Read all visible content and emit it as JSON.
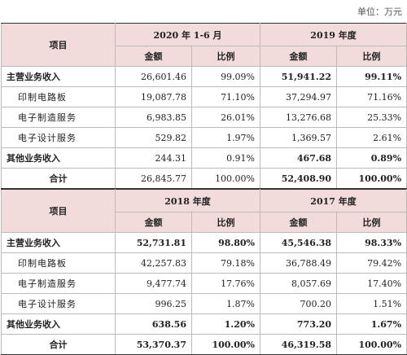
{
  "unit": "单位：万元",
  "blocks": [
    {
      "header": {
        "item": "项目",
        "periods": [
          "2020 年 1-6 月",
          "2019 年度"
        ],
        "columns": [
          "金额",
          "比例",
          "金额",
          "比例"
        ]
      },
      "rows": [
        [
          "主营业务收入",
          "26,601.46",
          "99.09%",
          "51,941.22",
          "99.11%"
        ],
        [
          "印制电路板",
          "19,087.78",
          "71.10%",
          "37,294.97",
          "71.16%"
        ],
        [
          "电子制造服务",
          "6,983.85",
          "26.01%",
          "13,276.68",
          "25.33%"
        ],
        [
          "电子设计服务",
          "529.82",
          "1.97%",
          "1,369.57",
          "2.61%"
        ],
        [
          "其他业务收入",
          "244.31",
          "0.91%",
          "467.68",
          "0.89%"
        ],
        [
          "合计",
          "26,845.77",
          "100.00%",
          "52,408.90",
          "100.00%"
        ]
      ]
    },
    {
      "header": {
        "item": "项目",
        "periods": [
          "2018 年度",
          "2017 年度"
        ],
        "columns": [
          "金额",
          "比例",
          "金额",
          "比例"
        ]
      },
      "rows": [
        [
          "主营业务收入",
          "52,731.81",
          "98.80%",
          "45,546.38",
          "98.33%"
        ],
        [
          "印制电路板",
          "42,257.83",
          "79.18%",
          "36,788.49",
          "79.42%"
        ],
        [
          "电子制造服务",
          "9,477.74",
          "17.76%",
          "8,057.69",
          "17.40%"
        ],
        [
          "电子设计服务",
          "996.25",
          "1.87%",
          "700.20",
          "1.51%"
        ],
        [
          "其他业务收入",
          "638.56",
          "1.20%",
          "773.20",
          "1.67%"
        ],
        [
          "合计",
          "53,370.37",
          "100.00%",
          "46,319.58",
          "100.00%"
        ]
      ]
    }
  ]
}
